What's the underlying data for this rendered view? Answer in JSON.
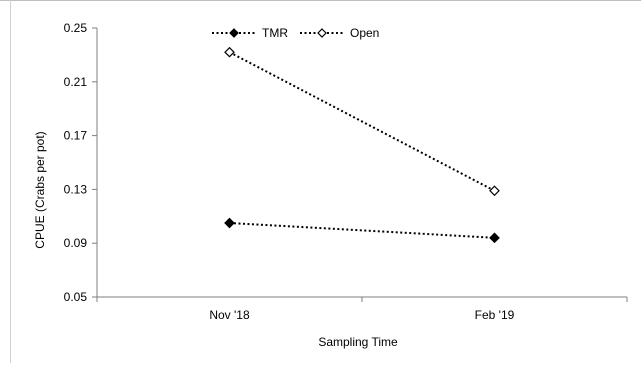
{
  "chart_data": {
    "type": "line",
    "categories": [
      "Nov '18",
      "Feb '19"
    ],
    "series": [
      {
        "name": "TMR",
        "values": [
          0.105,
          0.094
        ],
        "marker": "filled-diamond",
        "color": "#000000"
      },
      {
        "name": "Open",
        "values": [
          0.232,
          0.129
        ],
        "marker": "open-diamond",
        "color": "#000000"
      }
    ],
    "title": "",
    "xlabel": "Sampling Time",
    "ylabel": "CPUE (Crabs per pot)",
    "ylim": [
      0.05,
      0.25
    ],
    "yticks": [
      0.05,
      0.09,
      0.13,
      0.17,
      0.21,
      0.25
    ],
    "ytick_labels": [
      "0.05",
      "0.09",
      "0.13",
      "0.17",
      "0.21",
      "0.25"
    ],
    "grid": false,
    "legend": {
      "placement": "top-center",
      "entries": [
        "TMR",
        "Open"
      ]
    },
    "line_style": "dotted"
  }
}
